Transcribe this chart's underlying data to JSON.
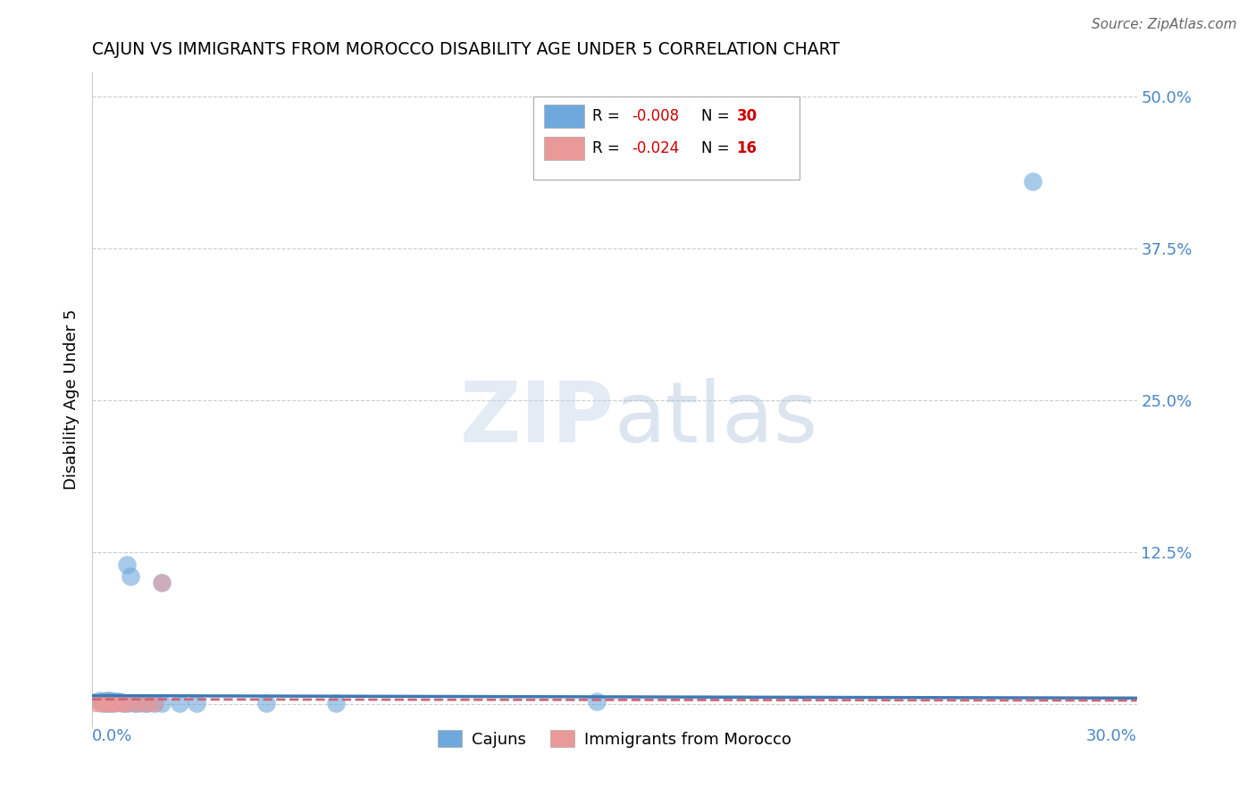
{
  "title": "CAJUN VS IMMIGRANTS FROM MOROCCO DISABILITY AGE UNDER 5 CORRELATION CHART",
  "source": "Source: ZipAtlas.com",
  "ylabel": "Disability Age Under 5",
  "xlim": [
    0.0,
    0.3
  ],
  "ylim": [
    -0.018,
    0.52
  ],
  "legend_cajun_R": "-0.008",
  "legend_cajun_N": "30",
  "legend_morocco_R": "-0.024",
  "legend_morocco_N": "16",
  "cajun_color": "#6fa8dc",
  "morocco_color": "#ea9999",
  "cajun_line_color": "#3d7ab5",
  "morocco_line_color": "#cc6677",
  "cajun_x": [
    0.002,
    0.003,
    0.003,
    0.004,
    0.004,
    0.004,
    0.005,
    0.005,
    0.005,
    0.006,
    0.006,
    0.007,
    0.008,
    0.009,
    0.01,
    0.01,
    0.011,
    0.012,
    0.013,
    0.015,
    0.016,
    0.018,
    0.02,
    0.025,
    0.03,
    0.05,
    0.07,
    0.145,
    0.27,
    0.02
  ],
  "cajun_y": [
    0.003,
    0.001,
    0.002,
    0.001,
    0.002,
    0.003,
    0.001,
    0.002,
    0.003,
    0.001,
    0.002,
    0.002,
    0.002,
    0.001,
    0.001,
    0.115,
    0.105,
    0.001,
    0.001,
    0.001,
    0.001,
    0.001,
    0.1,
    0.001,
    0.001,
    0.001,
    0.001,
    0.002,
    0.43,
    0.001
  ],
  "morocco_x": [
    0.001,
    0.002,
    0.003,
    0.004,
    0.004,
    0.005,
    0.006,
    0.007,
    0.008,
    0.009,
    0.01,
    0.012,
    0.014,
    0.016,
    0.018,
    0.02
  ],
  "morocco_y": [
    0.001,
    0.001,
    0.001,
    0.001,
    0.002,
    0.001,
    0.001,
    0.001,
    0.001,
    0.001,
    0.001,
    0.001,
    0.001,
    0.001,
    0.001,
    0.1
  ],
  "cajun_trend_x": [
    0.0,
    0.3
  ],
  "cajun_trend_y": [
    0.006,
    0.004
  ],
  "morocco_trend_x": [
    0.0,
    0.3
  ],
  "morocco_trend_y": [
    0.005,
    0.003
  ]
}
